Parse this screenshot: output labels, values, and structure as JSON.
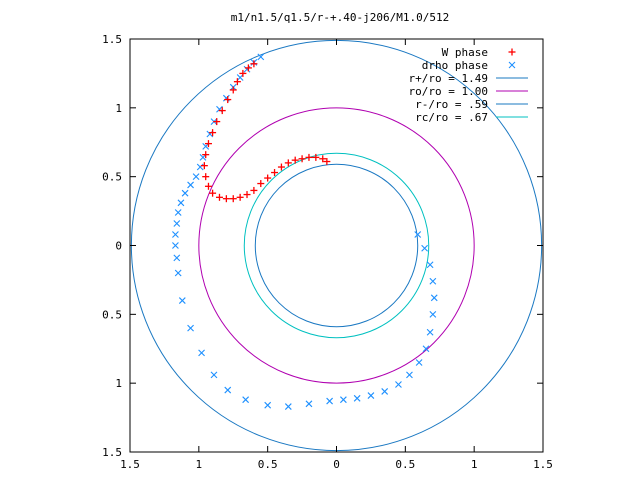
{
  "chart_data": {
    "type": "scatter",
    "title": "m1/n1.5/q1.5/r-+.40-j206/M1.0/512",
    "xlabel": "",
    "ylabel": "",
    "xlim": [
      -1.5,
      1.5
    ],
    "ylim": [
      -1.5,
      1.5
    ],
    "x_ticks": [
      -1.5,
      -1,
      -0.5,
      0,
      0.5,
      1,
      1.5
    ],
    "x_tick_labels": [
      "1.5",
      "1",
      "0.5",
      "0",
      "0.5",
      "1",
      "1.5"
    ],
    "y_ticks": [
      1.5,
      1,
      0.5,
      0,
      -0.5,
      -1,
      -1.5
    ],
    "y_tick_labels": [
      "1.5",
      "1",
      "0.5",
      "0",
      "0.5",
      "1",
      "1.5"
    ],
    "grid": false,
    "legend_position": "top-right",
    "circles": [
      {
        "name": "r+/ro = 1.49",
        "radius": 1.49,
        "color": "#1a78c2"
      },
      {
        "name": "ro/ro = 1.00",
        "radius": 1.0,
        "color": "#b000b0"
      },
      {
        "name": "r-/ro = .59",
        "radius": 0.59,
        "color": "#1a78c2"
      },
      {
        "name": "rc/ro = .67",
        "radius": 0.67,
        "color": "#00c0c0"
      }
    ],
    "series": [
      {
        "name": "W phase",
        "marker": "+",
        "color": "#ff0000",
        "points": [
          [
            -0.07,
            0.61
          ],
          [
            -0.1,
            0.63
          ],
          [
            -0.15,
            0.64
          ],
          [
            -0.2,
            0.64
          ],
          [
            -0.25,
            0.63
          ],
          [
            -0.3,
            0.62
          ],
          [
            -0.35,
            0.6
          ],
          [
            -0.4,
            0.57
          ],
          [
            -0.45,
            0.53
          ],
          [
            -0.5,
            0.49
          ],
          [
            -0.55,
            0.45
          ],
          [
            -0.6,
            0.4
          ],
          [
            -0.65,
            0.37
          ],
          [
            -0.7,
            0.35
          ],
          [
            -0.75,
            0.34
          ],
          [
            -0.8,
            0.34
          ],
          [
            -0.85,
            0.35
          ],
          [
            -0.9,
            0.38
          ],
          [
            -0.93,
            0.43
          ],
          [
            -0.95,
            0.5
          ],
          [
            -0.96,
            0.58
          ],
          [
            -0.95,
            0.66
          ],
          [
            -0.93,
            0.74
          ],
          [
            -0.9,
            0.82
          ],
          [
            -0.87,
            0.9
          ],
          [
            -0.83,
            0.98
          ],
          [
            -0.79,
            1.06
          ],
          [
            -0.75,
            1.13
          ],
          [
            -0.72,
            1.19
          ],
          [
            -0.68,
            1.25
          ],
          [
            -0.64,
            1.29
          ],
          [
            -0.6,
            1.32
          ]
        ]
      },
      {
        "name": "drho phase",
        "marker": "x",
        "color": "#1e90ff",
        "points": [
          [
            -0.55,
            1.37
          ],
          [
            -0.6,
            1.33
          ],
          [
            -0.65,
            1.28
          ],
          [
            -0.7,
            1.22
          ],
          [
            -0.75,
            1.15
          ],
          [
            -0.8,
            1.07
          ],
          [
            -0.85,
            0.99
          ],
          [
            -0.89,
            0.9
          ],
          [
            -0.92,
            0.81
          ],
          [
            -0.95,
            0.72
          ],
          [
            -0.97,
            0.64
          ],
          [
            -0.99,
            0.57
          ],
          [
            -1.02,
            0.5
          ],
          [
            -1.06,
            0.44
          ],
          [
            -1.1,
            0.38
          ],
          [
            -1.13,
            0.31
          ],
          [
            -1.15,
            0.24
          ],
          [
            -1.16,
            0.16
          ],
          [
            -1.17,
            0.08
          ],
          [
            -1.17,
            0.0
          ],
          [
            -1.16,
            -0.09
          ],
          [
            -1.15,
            -0.2
          ],
          [
            -1.12,
            -0.4
          ],
          [
            -1.06,
            -0.6
          ],
          [
            -0.98,
            -0.78
          ],
          [
            -0.89,
            -0.94
          ],
          [
            -0.79,
            -1.05
          ],
          [
            -0.66,
            -1.12
          ],
          [
            -0.5,
            -1.16
          ],
          [
            -0.35,
            -1.17
          ],
          [
            -0.2,
            -1.15
          ],
          [
            -0.05,
            -1.13
          ],
          [
            0.05,
            -1.12
          ],
          [
            0.15,
            -1.11
          ],
          [
            0.25,
            -1.09
          ],
          [
            0.35,
            -1.06
          ],
          [
            0.45,
            -1.01
          ],
          [
            0.53,
            -0.94
          ],
          [
            0.6,
            -0.85
          ],
          [
            0.65,
            -0.75
          ],
          [
            0.68,
            -0.63
          ],
          [
            0.7,
            -0.5
          ],
          [
            0.71,
            -0.38
          ],
          [
            0.7,
            -0.26
          ],
          [
            0.68,
            -0.14
          ],
          [
            0.64,
            -0.02
          ],
          [
            0.59,
            0.08
          ]
        ]
      }
    ]
  }
}
